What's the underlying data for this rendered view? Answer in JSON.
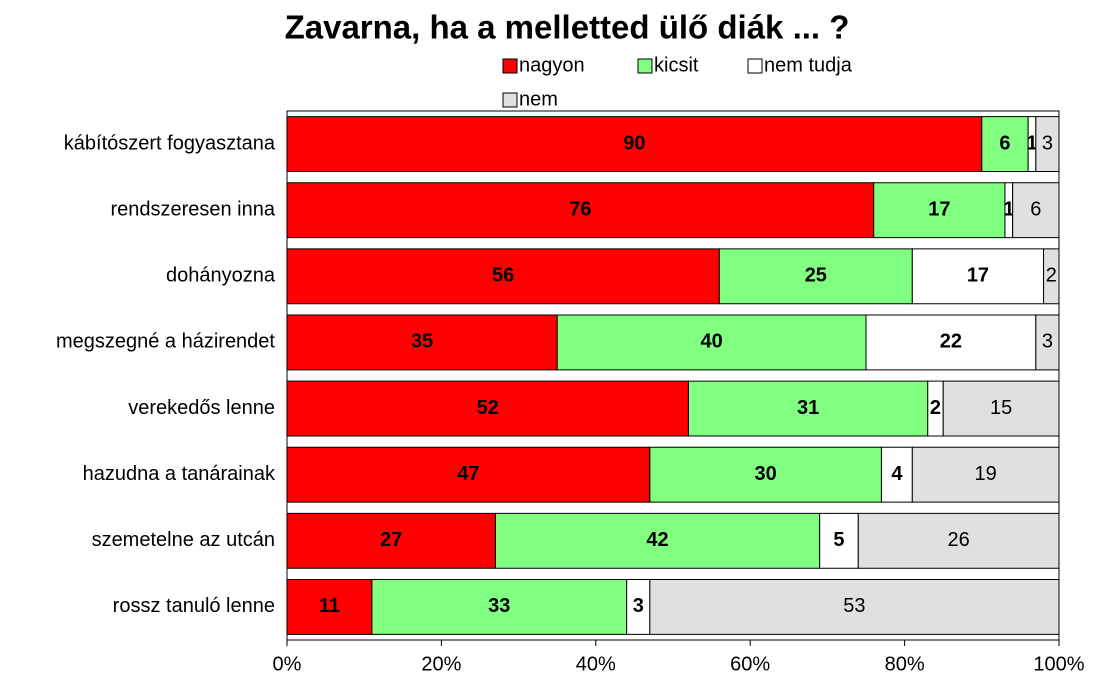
{
  "chart_data": {
    "type": "stacked_barh",
    "title": "Zavarna, ha a melletted ülő diák ... ?",
    "categories": [
      "kábítószert fogyasztana",
      "rendszeresen inna",
      "dohányozna",
      "megszegné a házirendet",
      "verekedős lenne",
      "hazudna a tanárainak",
      "szemetelne az utcán",
      "rossz tanuló lenne"
    ],
    "series": [
      {
        "name": "nagyon",
        "color": "#ff0000",
        "values": [
          90,
          76,
          56,
          35,
          52,
          47,
          27,
          11
        ]
      },
      {
        "name": "kicsit",
        "color": "#80ff80",
        "values": [
          6,
          17,
          25,
          40,
          31,
          30,
          42,
          33
        ]
      },
      {
        "name": "nem tudja",
        "color": "#ffffff",
        "values": [
          1,
          1,
          17,
          22,
          2,
          4,
          5,
          3
        ]
      },
      {
        "name": "nem",
        "color": "#e0e0e0",
        "values": [
          3,
          6,
          2,
          3,
          15,
          19,
          26,
          53
        ]
      }
    ],
    "xlim": [
      0,
      100
    ],
    "xticks": [
      {
        "value": 0,
        "label": "0%"
      },
      {
        "value": 20,
        "label": "20%"
      },
      {
        "value": 40,
        "label": "40%"
      },
      {
        "value": 60,
        "label": "60%"
      },
      {
        "value": 80,
        "label": "80%"
      },
      {
        "value": 100,
        "label": "100%"
      }
    ]
  }
}
